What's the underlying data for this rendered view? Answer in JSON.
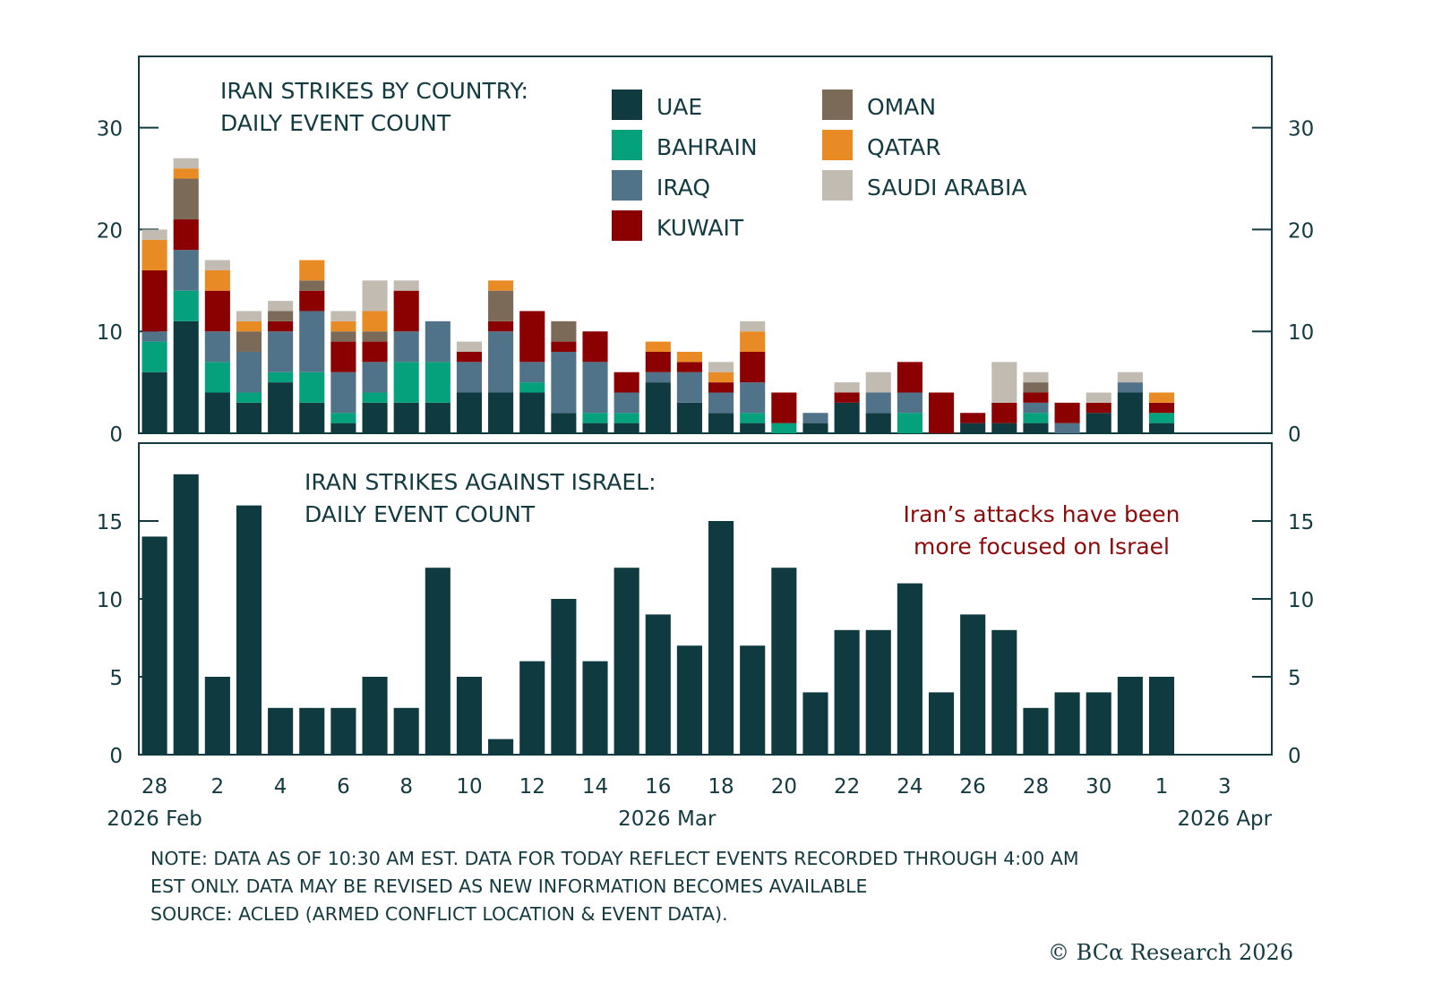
{
  "chart_data": [
    {
      "type": "bar",
      "stacked": true,
      "title": "IRAN STRIKES BY COUNTRY: DAILY EVENT COUNT",
      "title_lines": [
        "IRAN STRIKES BY COUNTRY:",
        "DAILY EVENT COUNT"
      ],
      "xlabel": "",
      "ylabel": "",
      "ylim": [
        0,
        37
      ],
      "yticks": [
        0,
        10,
        20,
        30
      ],
      "legend_position": "top-right",
      "categories": [
        "2026-02-28",
        "2026-03-01",
        "2026-03-02",
        "2026-03-03",
        "2026-03-04",
        "2026-03-05",
        "2026-03-06",
        "2026-03-07",
        "2026-03-08",
        "2026-03-09",
        "2026-03-10",
        "2026-03-11",
        "2026-03-12",
        "2026-03-13",
        "2026-03-14",
        "2026-03-15",
        "2026-03-16",
        "2026-03-17",
        "2026-03-18",
        "2026-03-19",
        "2026-03-20",
        "2026-03-21",
        "2026-03-22",
        "2026-03-23",
        "2026-03-24",
        "2026-03-25",
        "2026-03-26",
        "2026-03-27",
        "2026-03-28",
        "2026-03-29",
        "2026-03-30",
        "2026-03-31",
        "2026-04-01"
      ],
      "series": [
        {
          "name": "UAE",
          "color": "#0f3a40",
          "values": [
            6,
            11,
            4,
            3,
            5,
            3,
            1,
            3,
            3,
            3,
            4,
            4,
            4,
            2,
            1,
            1,
            5,
            3,
            2,
            1,
            0,
            1,
            3,
            2,
            0,
            0,
            1,
            1,
            1,
            0,
            2,
            4,
            1
          ]
        },
        {
          "name": "BAHRAIN",
          "color": "#05a07c",
          "values": [
            3,
            3,
            3,
            1,
            1,
            3,
            1,
            1,
            4,
            4,
            0,
            0,
            1,
            0,
            1,
            1,
            0,
            0,
            0,
            1,
            1,
            0,
            0,
            0,
            2,
            0,
            0,
            0,
            1,
            0,
            0,
            0,
            1
          ]
        },
        {
          "name": "IRAQ",
          "color": "#51738a",
          "values": [
            1,
            4,
            3,
            4,
            4,
            6,
            4,
            3,
            3,
            4,
            3,
            6,
            2,
            6,
            5,
            2,
            1,
            3,
            2,
            3,
            0,
            1,
            0,
            2,
            2,
            0,
            0,
            0,
            1,
            1,
            0,
            1,
            0
          ]
        },
        {
          "name": "KUWAIT",
          "color": "#8b0000",
          "values": [
            6,
            3,
            4,
            0,
            1,
            2,
            3,
            2,
            4,
            0,
            1,
            1,
            5,
            1,
            3,
            2,
            2,
            1,
            1,
            3,
            3,
            0,
            1,
            0,
            3,
            4,
            1,
            2,
            1,
            2,
            1,
            0,
            1
          ]
        },
        {
          "name": "OMAN",
          "color": "#7b6a58",
          "values": [
            0,
            4,
            0,
            2,
            1,
            1,
            1,
            1,
            0,
            0,
            0,
            3,
            0,
            2,
            0,
            0,
            0,
            0,
            0,
            0,
            0,
            0,
            0,
            0,
            0,
            0,
            0,
            0,
            1,
            0,
            0,
            0,
            0
          ]
        },
        {
          "name": "QATAR",
          "color": "#e98b25",
          "values": [
            3,
            1,
            2,
            1,
            0,
            2,
            1,
            2,
            0,
            0,
            0,
            1,
            0,
            0,
            0,
            0,
            1,
            1,
            1,
            2,
            0,
            0,
            0,
            0,
            0,
            0,
            0,
            0,
            0,
            0,
            0,
            0,
            1
          ]
        },
        {
          "name": "SAUDI ARABIA",
          "color": "#c1bbb1",
          "values": [
            1,
            1,
            1,
            1,
            1,
            0,
            1,
            3,
            1,
            0,
            1,
            0,
            0,
            0,
            0,
            0,
            0,
            0,
            1,
            1,
            0,
            0,
            1,
            2,
            0,
            0,
            0,
            4,
            1,
            0,
            1,
            1,
            0
          ]
        }
      ]
    },
    {
      "type": "bar",
      "title": "IRAN STRIKES AGAINST ISRAEL: DAILY EVENT COUNT",
      "title_lines": [
        "IRAN STRIKES AGAINST ISRAEL:",
        "DAILY EVENT COUNT"
      ],
      "annotation_lines": [
        "Iran’s attacks have been",
        "more focused on Israel"
      ],
      "xlabel": "",
      "ylabel": "",
      "ylim": [
        0,
        20
      ],
      "yticks": [
        0,
        5,
        10,
        15
      ],
      "color": "#0f3a40",
      "categories": [
        "2026-02-28",
        "2026-03-01",
        "2026-03-02",
        "2026-03-03",
        "2026-03-04",
        "2026-03-05",
        "2026-03-06",
        "2026-03-07",
        "2026-03-08",
        "2026-03-09",
        "2026-03-10",
        "2026-03-11",
        "2026-03-12",
        "2026-03-13",
        "2026-03-14",
        "2026-03-15",
        "2026-03-16",
        "2026-03-17",
        "2026-03-18",
        "2026-03-19",
        "2026-03-20",
        "2026-03-21",
        "2026-03-22",
        "2026-03-23",
        "2026-03-24",
        "2026-03-25",
        "2026-03-26",
        "2026-03-27",
        "2026-03-28",
        "2026-03-29",
        "2026-03-30",
        "2026-03-31",
        "2026-04-01"
      ],
      "values": [
        14,
        18,
        5,
        16,
        3,
        3,
        3,
        5,
        3,
        12,
        5,
        1,
        6,
        10,
        6,
        12,
        9,
        7,
        15,
        7,
        12,
        4,
        8,
        8,
        11,
        4,
        9,
        8,
        3,
        4,
        4,
        5,
        5
      ]
    }
  ],
  "x_axis": {
    "tick_labels": [
      "28",
      "2",
      "4",
      "6",
      "8",
      "10",
      "12",
      "14",
      "16",
      "18",
      "20",
      "22",
      "24",
      "26",
      "28",
      "30",
      "1",
      "3"
    ],
    "period_labels": [
      "2026 Feb",
      "2026 Mar",
      "2026 Apr"
    ]
  },
  "annotation_color": "#8b0a0a",
  "notes": [
    "NOTE: DATA AS OF 10:30 AM EST. DATA FOR TODAY REFLECT EVENTS RECORDED THROUGH 4:00 AM",
    "EST ONLY. DATA MAY BE REVISED AS NEW INFORMATION BECOMES AVAILABLE",
    "SOURCE: ACLED (ARMED CONFLICT LOCATION & EVENT DATA)."
  ],
  "copyright": "© BCα Research 2026"
}
